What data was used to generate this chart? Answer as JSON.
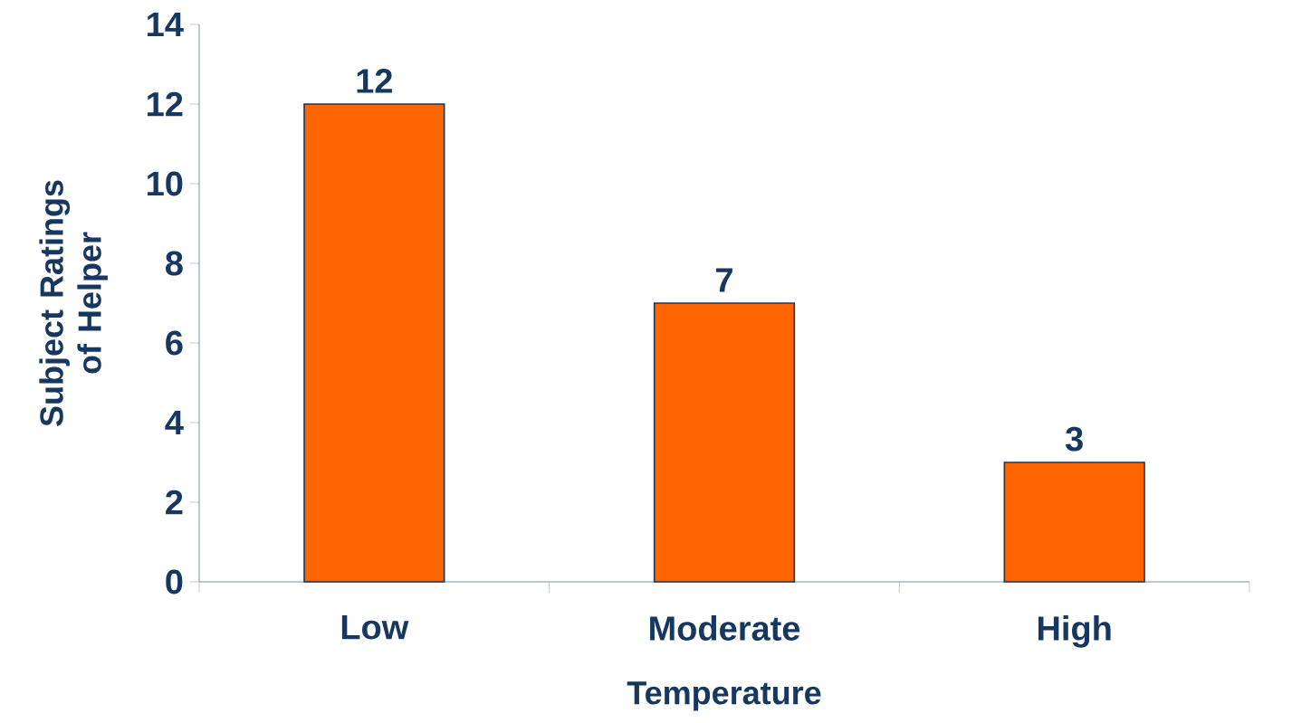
{
  "chart_data": {
    "type": "bar",
    "xlabel": "Temperature",
    "ylabel": "Subject Ratings of Helper",
    "categories": [
      "Low",
      "Moderate",
      "High"
    ],
    "values": [
      12,
      7,
      3
    ],
    "color": "#ff6600",
    "ylim": [
      0,
      14
    ],
    "yticks": [
      0,
      2,
      4,
      6,
      8,
      10,
      12,
      14
    ],
    "data_labels": true
  }
}
